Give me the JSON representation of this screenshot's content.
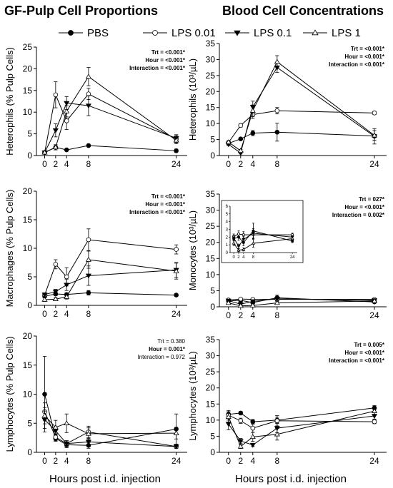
{
  "figure": {
    "left_title": "GF-Pulp Cell Proportions",
    "right_title": "Blood Cell Concentrations",
    "xlabel": "Hours post i.d. injection"
  },
  "legend": [
    {
      "name": "PBS",
      "marker": "filled-circle"
    },
    {
      "name": "LPS 0.01",
      "marker": "open-circle"
    },
    {
      "name": "LPS 0.1",
      "marker": "filled-triangle-down"
    },
    {
      "name": "LPS 1",
      "marker": "open-triangle-up"
    }
  ],
  "colors": {
    "line": "#000000",
    "marker_fill": "#000000",
    "marker_open": "#ffffff"
  },
  "chart_data": [
    {
      "type": "line",
      "id": "het-pulp",
      "ylabel": "Heterophils (% Pulp Cells)",
      "x": [
        0,
        2,
        4,
        8,
        24
      ],
      "xlim": [
        -1.5,
        26
      ],
      "ylim": [
        0,
        25
      ],
      "yticks": [
        0,
        5,
        10,
        15,
        20,
        25
      ],
      "stats": [
        {
          "text": "Trt = <0.001*",
          "bold": true
        },
        {
          "text": "Hour = <0.001*",
          "bold": true
        },
        {
          "text": "Interaction = <0.001*",
          "bold": true
        }
      ],
      "series": [
        {
          "name": "PBS",
          "values": [
            0.7,
            1.9,
            1.3,
            2.3,
            1.1
          ],
          "err": [
            0,
            0.3,
            0.2,
            0.3,
            0.4
          ]
        },
        {
          "name": "LPS 0.01",
          "values": [
            0.7,
            14.0,
            8.0,
            14.2,
            3.8
          ],
          "err": [
            0,
            3.0,
            2.0,
            1.3,
            0.8
          ]
        },
        {
          "name": "LPS 0.1",
          "values": [
            0.7,
            5.8,
            12.1,
            11.5,
            4.0
          ],
          "err": [
            0,
            1.5,
            1.5,
            2.3,
            0.8
          ]
        },
        {
          "name": "LPS 1",
          "values": [
            0.7,
            1.9,
            10.2,
            18.2,
            3.5
          ],
          "err": [
            0,
            0.6,
            1.3,
            2.1,
            0.8
          ]
        }
      ]
    },
    {
      "type": "line",
      "id": "het-blood",
      "ylabel": "Heterophils (10³/µL)",
      "x": [
        0,
        2,
        4,
        8,
        24
      ],
      "xlim": [
        -1.5,
        26
      ],
      "ylim": [
        0,
        35
      ],
      "yticks": [
        0,
        5,
        10,
        15,
        20,
        25,
        30,
        35
      ],
      "stats": [
        {
          "text": "Trt = <0.001*",
          "bold": true
        },
        {
          "text": "Hour = <0.001*",
          "bold": true
        },
        {
          "text": "Interaction = <0.001*",
          "bold": true
        }
      ],
      "series": [
        {
          "name": "PBS",
          "values": [
            3.8,
            5.2,
            7.0,
            7.3,
            6.1
          ],
          "err": [
            0.3,
            0.3,
            0.8,
            2.8,
            0.5
          ]
        },
        {
          "name": "LPS 0.01",
          "values": [
            4.1,
            9.4,
            12.8,
            14.0,
            13.3
          ],
          "err": [
            0.4,
            0.5,
            1.2,
            1.0,
            0.5
          ]
        },
        {
          "name": "LPS 0.1",
          "values": [
            3.5,
            0.8,
            15.2,
            27.5,
            6.0
          ],
          "err": [
            0.4,
            0.3,
            1.8,
            1.5,
            2.4
          ]
        },
        {
          "name": "LPS 1",
          "values": [
            4.2,
            1.5,
            14.0,
            29.3,
            6.3
          ],
          "err": [
            0.3,
            0.4,
            1.8,
            1.9,
            1.5
          ]
        }
      ]
    },
    {
      "type": "line",
      "id": "mac-pulp",
      "ylabel": "Macrophages (% Pulp Cells)",
      "x": [
        0,
        2,
        4,
        8,
        24
      ],
      "xlim": [
        -1.5,
        26
      ],
      "ylim": [
        0,
        20
      ],
      "yticks": [
        0,
        5,
        10,
        15,
        20
      ],
      "stats": [
        {
          "text": "Trt = <0.001*",
          "bold": true
        },
        {
          "text": "Hour = <0.001*",
          "bold": true
        },
        {
          "text": "Interaction = <0.001*",
          "bold": true
        }
      ],
      "series": [
        {
          "name": "PBS",
          "values": [
            1.6,
            2.0,
            1.9,
            2.2,
            1.8
          ],
          "err": [
            0.3,
            0.3,
            0.3,
            0.4,
            0.2
          ]
        },
        {
          "name": "LPS 0.01",
          "values": [
            1.8,
            7.2,
            5.0,
            11.5,
            9.8
          ],
          "err": [
            0.4,
            0.8,
            1.6,
            1.9,
            0.8
          ]
        },
        {
          "name": "LPS 0.1",
          "values": [
            1.9,
            2.4,
            3.6,
            5.2,
            6.2
          ],
          "err": [
            0.3,
            0.4,
            1.0,
            1.7,
            1.3
          ]
        },
        {
          "name": "LPS 1",
          "values": [
            1.0,
            1.1,
            1.5,
            8.0,
            6.0
          ],
          "err": [
            0.3,
            0.3,
            0.4,
            1.5,
            1.4
          ]
        }
      ]
    },
    {
      "type": "line",
      "id": "mono-blood",
      "ylabel": "Monocytes (10³/µL)",
      "x": [
        0,
        2,
        4,
        8,
        24
      ],
      "xlim": [
        -1.5,
        26
      ],
      "ylim": [
        0,
        35
      ],
      "yticks": [
        0,
        5,
        10,
        15,
        20,
        25,
        30,
        35
      ],
      "stats": [
        {
          "text": "Trt = 027*",
          "bold": true
        },
        {
          "text": "Hour = <0.001*",
          "bold": true
        },
        {
          "text": "Interaction = 0.002*",
          "bold": true
        }
      ],
      "series": [
        {
          "name": "PBS",
          "values": [
            1.8,
            2.0,
            1.3,
            2.8,
            1.5
          ],
          "err": [
            0.2,
            0.3,
            0.3,
            0.8,
            0.2
          ]
        },
        {
          "name": "LPS 0.01",
          "values": [
            2.1,
            2.4,
            2.3,
            2.3,
            2.3
          ],
          "err": [
            0.2,
            0.3,
            0.3,
            0.4,
            0.2
          ]
        },
        {
          "name": "LPS 0.1",
          "values": [
            1.9,
            0.8,
            1.7,
            2.5,
            2.0
          ],
          "err": [
            0.3,
            0.2,
            0.3,
            0.5,
            0.2
          ]
        },
        {
          "name": "LPS 1",
          "values": [
            1.2,
            0.3,
            0.4,
            1.2,
            1.8
          ],
          "err": [
            0.2,
            0.2,
            0.2,
            0.4,
            0.2
          ]
        }
      ],
      "inset": {
        "ylim": [
          0,
          6
        ],
        "yticks": [
          0,
          1,
          2,
          3,
          4,
          5,
          6
        ],
        "series": [
          {
            "name": "PBS",
            "values": [
              1.8,
              2.0,
              1.3,
              2.8,
              1.5
            ],
            "err": [
              0.3,
              0.4,
              0.4,
              1.0,
              0.2
            ]
          },
          {
            "name": "LPS 0.01",
            "values": [
              2.1,
              2.4,
              2.3,
              2.3,
              2.3
            ],
            "err": [
              0.3,
              0.4,
              0.4,
              0.5,
              0.2
            ]
          },
          {
            "name": "LPS 0.1",
            "values": [
              1.9,
              0.8,
              1.7,
              2.5,
              2.0
            ],
            "err": [
              0.3,
              0.3,
              0.4,
              0.6,
              0.2
            ]
          },
          {
            "name": "LPS 1",
            "values": [
              1.2,
              0.3,
              0.4,
              1.2,
              1.8
            ],
            "err": [
              0.3,
              0.2,
              0.2,
              0.5,
              0.2
            ]
          }
        ]
      }
    },
    {
      "type": "line",
      "id": "lym-pulp",
      "ylabel": "Lymphocytes (% Pulp Cells)",
      "x": [
        0,
        2,
        4,
        8,
        24
      ],
      "xlim": [
        -1.5,
        26
      ],
      "ylim": [
        0,
        20
      ],
      "yticks": [
        0,
        5,
        10,
        15,
        20
      ],
      "stats": [
        {
          "text": "Trt = 0.380",
          "bold": false
        },
        {
          "text": "Hour = 0.001*",
          "bold": true
        },
        {
          "text": "Interaction = 0.972",
          "bold": false
        }
      ],
      "series": [
        {
          "name": "PBS",
          "values": [
            10.0,
            2.4,
            1.3,
            1.2,
            4.0
          ],
          "err": [
            6.5,
            0.5,
            0.5,
            0.5,
            2.6
          ]
        },
        {
          "name": "LPS 0.01",
          "values": [
            7.0,
            2.6,
            1.5,
            3.5,
            1.0
          ],
          "err": [
            1.5,
            0.6,
            0.5,
            1.0,
            0.3
          ]
        },
        {
          "name": "LPS 0.1",
          "values": [
            5.6,
            3.7,
            1.5,
            1.8,
            1.0
          ],
          "err": [
            1.5,
            0.7,
            0.5,
            0.6,
            0.3
          ]
        },
        {
          "name": "LPS 1",
          "values": [
            6.3,
            4.3,
            5.0,
            3.2,
            3.3
          ],
          "err": [
            1.4,
            1.2,
            1.6,
            1.0,
            1.0
          ]
        }
      ]
    },
    {
      "type": "line",
      "id": "lym-blood",
      "ylabel": "Lymphocytes (10³/µL)",
      "x": [
        0,
        2,
        4,
        8,
        24
      ],
      "xlim": [
        -1.5,
        26
      ],
      "ylim": [
        0,
        35
      ],
      "yticks": [
        0,
        5,
        10,
        15,
        20,
        25,
        30,
        35
      ],
      "stats": [
        {
          "text": "Trt = 0.005*",
          "bold": true
        },
        {
          "text": "Hour = <0.001*",
          "bold": true
        },
        {
          "text": "Interaction = <0.001*",
          "bold": true
        }
      ],
      "series": [
        {
          "name": "PBS",
          "values": [
            11.8,
            12.2,
            9.5,
            10.0,
            13.8
          ],
          "err": [
            0.8,
            0.5,
            0.7,
            0.9,
            0.7
          ]
        },
        {
          "name": "LPS 0.01",
          "values": [
            11.5,
            9.8,
            7.5,
            9.8,
            9.5
          ],
          "err": [
            1.5,
            0.8,
            1.3,
            1.6,
            0.6
          ]
        },
        {
          "name": "LPS 0.1",
          "values": [
            8.8,
            3.5,
            2.3,
            7.5,
            11.3
          ],
          "err": [
            1.8,
            0.8,
            0.5,
            1.4,
            1.0
          ]
        },
        {
          "name": "LPS 1",
          "values": [
            11.0,
            1.8,
            4.8,
            5.6,
            12.8
          ],
          "err": [
            1.6,
            0.6,
            1.4,
            1.8,
            1.0
          ]
        }
      ]
    }
  ]
}
